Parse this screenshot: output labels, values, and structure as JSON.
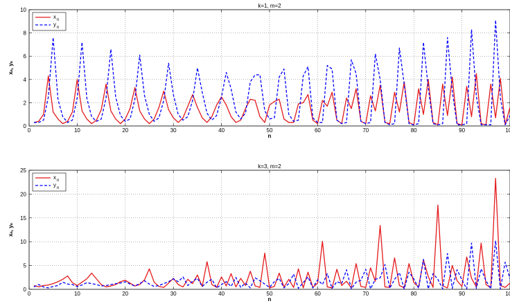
{
  "chart_data": [
    {
      "type": "line",
      "title": "k=1, m=2",
      "xlabel": "n",
      "ylabel": "xₙ, yₙ",
      "xlim": [
        0,
        100
      ],
      "ylim": [
        0,
        10
      ],
      "xticks": [
        0,
        10,
        20,
        30,
        40,
        50,
        60,
        70,
        80,
        90,
        100
      ],
      "yticks": [
        0,
        2,
        4,
        6,
        8,
        10
      ],
      "tick_labels_x": [
        "0",
        "10",
        "20",
        "30",
        "40",
        "50",
        "60",
        "70",
        "80",
        "90",
        "100"
      ],
      "tick_labels_y": [
        "0",
        "2",
        "4",
        "6",
        "8",
        "10"
      ],
      "grid": true,
      "legend": "top-left",
      "series": [
        {
          "name": "x",
          "name_sub": "n",
          "color": "#e41a1c",
          "style": "solid",
          "x": [
            1,
            2,
            3,
            4,
            5,
            6,
            7,
            8,
            9,
            10,
            11,
            12,
            13,
            14,
            15,
            16,
            17,
            18,
            19,
            20,
            21,
            22,
            23,
            24,
            25,
            26,
            27,
            28,
            29,
            30,
            31,
            32,
            33,
            34,
            35,
            36,
            37,
            38,
            39,
            40,
            41,
            42,
            43,
            44,
            45,
            46,
            47,
            48,
            49,
            50,
            51,
            52,
            53,
            54,
            55,
            56,
            57,
            58,
            59,
            60,
            61,
            62,
            63,
            64,
            65,
            66,
            67,
            68,
            69,
            70,
            71,
            72,
            73,
            74,
            75,
            76,
            77,
            78,
            79,
            80,
            81,
            82,
            83,
            84,
            85,
            86,
            87,
            88,
            89,
            90,
            91,
            92,
            93,
            94,
            95,
            96,
            97,
            98,
            99,
            100
          ],
          "y": [
            0.3,
            0.4,
            1.0,
            4.3,
            1.2,
            0.6,
            0.2,
            0.4,
            1.2,
            4.0,
            1.3,
            0.6,
            0.2,
            0.5,
            1.4,
            3.6,
            1.3,
            0.6,
            0.2,
            0.6,
            1.5,
            3.3,
            1.3,
            0.6,
            0.2,
            0.6,
            1.6,
            3.0,
            1.4,
            0.7,
            0.3,
            0.7,
            1.7,
            2.7,
            1.6,
            0.7,
            0.3,
            0.8,
            1.8,
            2.5,
            1.8,
            0.8,
            0.3,
            0.5,
            1.5,
            2.3,
            2.2,
            0.8,
            0.3,
            1.8,
            2.1,
            2.3,
            0.6,
            0.3,
            0.3,
            1.9,
            2.0,
            2.7,
            0.5,
            0.2,
            2.2,
            1.7,
            2.9,
            0.5,
            0.2,
            2.4,
            1.5,
            3.2,
            0.4,
            0.2,
            2.6,
            1.3,
            3.5,
            0.3,
            0.2,
            2.9,
            1.2,
            3.8,
            0.3,
            0.1,
            3.2,
            1.0,
            4.0,
            0.3,
            0.1,
            3.6,
            0.9,
            4.2,
            0.2,
            0.1,
            3.4,
            0.8,
            4.5,
            0.2,
            0.1,
            3.6,
            0.7,
            4.1,
            0.1,
            1.6
          ]
        },
        {
          "name": "y",
          "name_sub": "n",
          "color": "#0000ff",
          "style": "dashed",
          "x": [
            1,
            2,
            3,
            4,
            5,
            6,
            7,
            8,
            9,
            10,
            11,
            12,
            13,
            14,
            15,
            16,
            17,
            18,
            19,
            20,
            21,
            22,
            23,
            24,
            25,
            26,
            27,
            28,
            29,
            30,
            31,
            32,
            33,
            34,
            35,
            36,
            37,
            38,
            39,
            40,
            41,
            42,
            43,
            44,
            45,
            46,
            47,
            48,
            49,
            50,
            51,
            52,
            53,
            54,
            55,
            56,
            57,
            58,
            59,
            60,
            61,
            62,
            63,
            64,
            65,
            66,
            67,
            68,
            69,
            70,
            71,
            72,
            73,
            74,
            75,
            76,
            77,
            78,
            79,
            80,
            81,
            82,
            83,
            84,
            85,
            86,
            87,
            88,
            89,
            90,
            91,
            92,
            93,
            94,
            95,
            96,
            97,
            98,
            99,
            100
          ],
          "y": [
            0.3,
            0.3,
            0.5,
            2.5,
            7.6,
            2.3,
            0.8,
            0.3,
            0.5,
            2.4,
            7.2,
            2.4,
            0.8,
            0.4,
            0.6,
            2.4,
            6.6,
            2.5,
            0.9,
            0.4,
            0.6,
            2.3,
            6.1,
            2.6,
            1.0,
            0.4,
            0.7,
            2.2,
            5.4,
            2.7,
            1.0,
            0.5,
            0.8,
            2.2,
            5.0,
            2.9,
            1.1,
            0.5,
            0.9,
            2.5,
            4.6,
            3.2,
            1.2,
            0.6,
            1.1,
            3.8,
            4.4,
            4.4,
            1.3,
            0.6,
            0.7,
            4.2,
            4.9,
            1.0,
            0.4,
            0.5,
            4.3,
            5.1,
            0.7,
            0.3,
            0.3,
            5.2,
            4.9,
            0.5,
            0.2,
            0.3,
            5.7,
            4.5,
            0.4,
            0.2,
            0.3,
            6.2,
            4.0,
            0.3,
            0.1,
            0.2,
            6.7,
            3.6,
            0.2,
            0.1,
            0.2,
            7.2,
            3.3,
            0.2,
            0.1,
            0.2,
            7.6,
            3.0,
            0.1,
            0.1,
            0.2,
            8.3,
            2.6,
            0.1,
            0.1,
            0.1,
            9.1,
            2.4,
            0.1,
            0.9
          ]
        }
      ]
    },
    {
      "type": "line",
      "title": "k=3, m=2",
      "xlabel": "n",
      "ylabel": "xₙ, yₙ",
      "xlim": [
        0,
        100
      ],
      "ylim": [
        0,
        25
      ],
      "xticks": [
        0,
        10,
        20,
        30,
        40,
        50,
        60,
        70,
        80,
        90,
        100
      ],
      "yticks": [
        0,
        5,
        10,
        15,
        20,
        25
      ],
      "tick_labels_x": [
        "0",
        "10",
        "20",
        "30",
        "40",
        "50",
        "60",
        "70",
        "80",
        "90",
        "100"
      ],
      "tick_labels_y": [
        "0",
        "5",
        "10",
        "15",
        "20",
        "25"
      ],
      "grid": true,
      "legend": "top-left",
      "series": [
        {
          "name": "x",
          "name_sub": "n",
          "color": "#e41a1c",
          "style": "solid",
          "x": [
            1,
            2,
            3,
            4,
            5,
            6,
            7,
            8,
            9,
            10,
            11,
            12,
            13,
            14,
            15,
            16,
            17,
            18,
            19,
            20,
            21,
            22,
            23,
            24,
            25,
            26,
            27,
            28,
            29,
            30,
            31,
            32,
            33,
            34,
            35,
            36,
            37,
            38,
            39,
            40,
            41,
            42,
            43,
            44,
            45,
            46,
            47,
            48,
            49,
            50,
            51,
            52,
            53,
            54,
            55,
            56,
            57,
            58,
            59,
            60,
            61,
            62,
            63,
            64,
            65,
            66,
            67,
            68,
            69,
            70,
            71,
            72,
            73,
            74,
            75,
            76,
            77,
            78,
            79,
            80,
            81,
            82,
            83,
            84,
            85,
            86,
            87,
            88,
            89,
            90,
            91,
            92,
            93,
            94,
            95,
            96,
            97,
            98,
            99,
            100
          ],
          "y": [
            0.8,
            0.5,
            0.8,
            0.9,
            1.2,
            1.6,
            2.1,
            2.8,
            1.4,
            0.8,
            1.5,
            2.2,
            3.4,
            2.2,
            1.0,
            0.5,
            0.7,
            1.0,
            1.6,
            1.9,
            1.3,
            0.7,
            1.0,
            2.0,
            4.3,
            1.5,
            0.6,
            0.4,
            1.3,
            2.3,
            1.0,
            0.5,
            2.1,
            1.2,
            3.0,
            0.6,
            5.8,
            1.0,
            0.4,
            2.6,
            0.7,
            3.3,
            0.5,
            2.3,
            0.8,
            3.8,
            0.7,
            0.4,
            7.6,
            0.3,
            0.6,
            3.4,
            0.5,
            2.1,
            0.4,
            4.3,
            0.3,
            3.6,
            0.4,
            1.3,
            10.1,
            0.5,
            0.3,
            4.2,
            0.8,
            1.7,
            0.3,
            5.4,
            0.6,
            0.4,
            4.5,
            1.7,
            13.4,
            0.5,
            0.4,
            6.6,
            0.8,
            0.3,
            5.4,
            1.4,
            0.5,
            6.2,
            2.7,
            0.4,
            17.7,
            0.7,
            0.3,
            5.0,
            1.8,
            0.6,
            6.8,
            2.3,
            0.5,
            9.7,
            1.0,
            0.3,
            23.3,
            0.8,
            0.4,
            1.3
          ]
        },
        {
          "name": "y",
          "name_sub": "n",
          "color": "#0000ff",
          "style": "dashed",
          "x": [
            1,
            2,
            3,
            4,
            5,
            6,
            7,
            8,
            9,
            10,
            11,
            12,
            13,
            14,
            15,
            16,
            17,
            18,
            19,
            20,
            21,
            22,
            23,
            24,
            25,
            26,
            27,
            28,
            29,
            30,
            31,
            32,
            33,
            34,
            35,
            36,
            37,
            38,
            39,
            40,
            41,
            42,
            43,
            44,
            45,
            46,
            47,
            48,
            49,
            50,
            51,
            52,
            53,
            54,
            55,
            56,
            57,
            58,
            59,
            60,
            61,
            62,
            63,
            64,
            65,
            66,
            67,
            68,
            69,
            70,
            71,
            72,
            73,
            74,
            75,
            76,
            77,
            78,
            79,
            80,
            81,
            82,
            83,
            84,
            85,
            86,
            87,
            88,
            89,
            90,
            91,
            92,
            93,
            94,
            95,
            96,
            97,
            98,
            99,
            100
          ],
          "y": [
            0.5,
            1.0,
            0.5,
            0.3,
            0.6,
            0.8,
            1.5,
            1.1,
            1.0,
            0.6,
            0.9,
            1.4,
            1.2,
            1.0,
            0.7,
            0.8,
            1.0,
            1.2,
            1.3,
            1.6,
            1.1,
            0.7,
            1.2,
            1.8,
            1.1,
            0.6,
            0.8,
            1.2,
            1.6,
            2.2,
            1.6,
            2.6,
            0.8,
            1.7,
            2.3,
            0.6,
            1.5,
            2.1,
            0.3,
            1.0,
            1.6,
            0.6,
            2.5,
            0.4,
            1.3,
            0.3,
            2.4,
            1.8,
            1.1,
            0.4,
            1.6,
            2.3,
            0.3,
            1.2,
            3.2,
            0.2,
            1.4,
            2.6,
            0.3,
            2.0,
            1.0,
            3.3,
            0.2,
            1.6,
            1.2,
            4.1,
            0.1,
            1.5,
            1.9,
            4.2,
            0.1,
            2.1,
            2.4,
            5.2,
            0.2,
            2.1,
            3.5,
            0.1,
            3.6,
            2.2,
            0.2,
            6.3,
            0.1,
            3.3,
            2.1,
            0.1,
            7.5,
            0.2,
            4.1,
            2.0,
            0.1,
            9.7,
            0.2,
            4.3,
            1.8,
            0.1,
            10.2,
            0.1,
            5.7,
            2.2
          ]
        }
      ]
    }
  ]
}
